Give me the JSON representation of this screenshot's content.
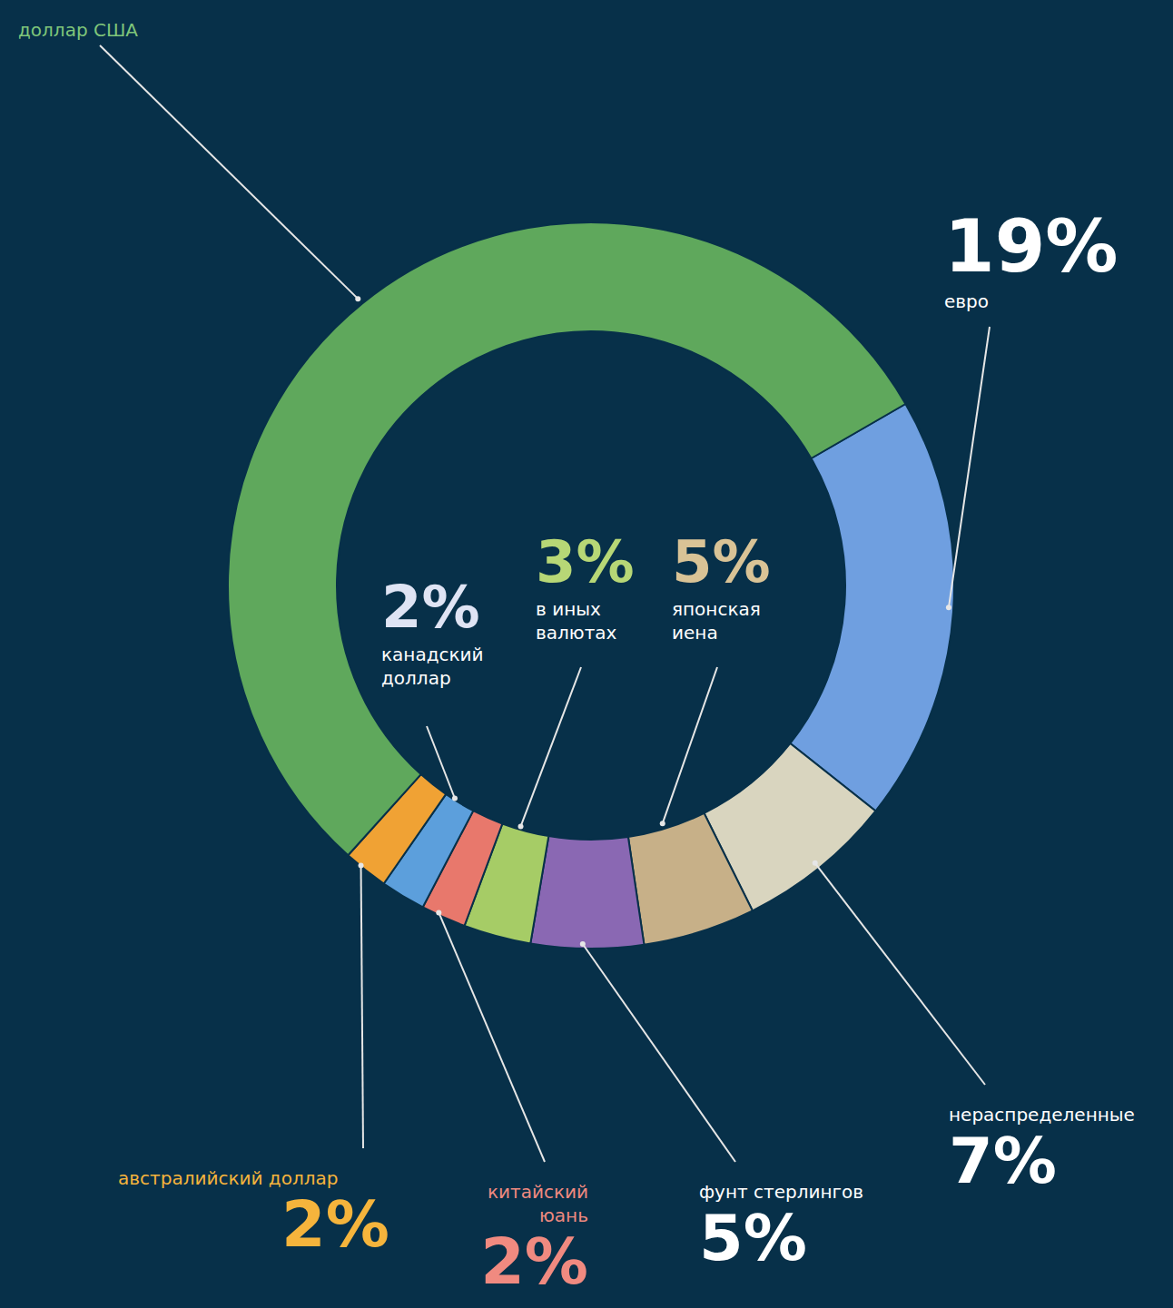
{
  "chart_data": {
    "type": "pie",
    "categories": [
      "евро",
      "нераспределенные",
      "японская иена",
      "фунт стерлингов",
      "в иных валютах",
      "китайский юань",
      "канадский доллар",
      "австралийский доллар",
      "доллар США"
    ],
    "values": [
      19,
      7,
      5,
      5,
      3,
      2,
      2,
      2,
      55
    ],
    "value_labels": [
      "19%",
      "7%",
      "5%",
      "5%",
      "3%",
      "2%",
      "2%",
      "2%",
      null
    ],
    "colors": [
      "#6f9fe0",
      "#d9d5bf",
      "#c7b088",
      "#8a68b3",
      "#a6cc66",
      "#e8786c",
      "#5c9fdc",
      "#f0a234",
      "#5fa85c"
    ],
    "data_labels": true
  }
}
